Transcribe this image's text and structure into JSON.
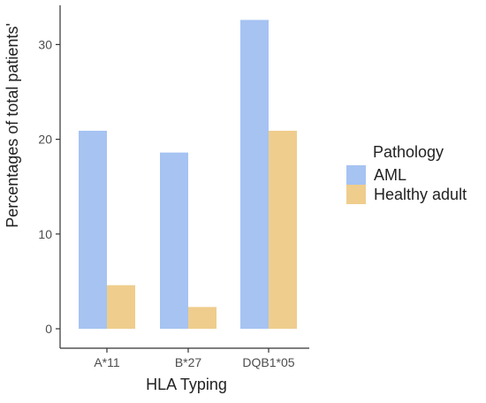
{
  "chart_data": {
    "type": "bar",
    "title": "",
    "xlabel": "HLA Typing",
    "ylabel": "Percentages of total patients'",
    "categories": [
      "A*11",
      "B*27",
      "DQB1*05"
    ],
    "series": [
      {
        "name": "AML",
        "values": [
          20.9,
          18.6,
          32.6
        ],
        "color": "#a6c3f2"
      },
      {
        "name": "Healthy adult",
        "values": [
          4.6,
          2.3,
          20.9
        ],
        "color": "#efcd8d"
      }
    ],
    "ylim": [
      0,
      34
    ],
    "yticks": [
      0,
      10,
      20,
      30
    ],
    "grid": false,
    "legend": {
      "title": "Pathology",
      "placement": "right"
    }
  }
}
